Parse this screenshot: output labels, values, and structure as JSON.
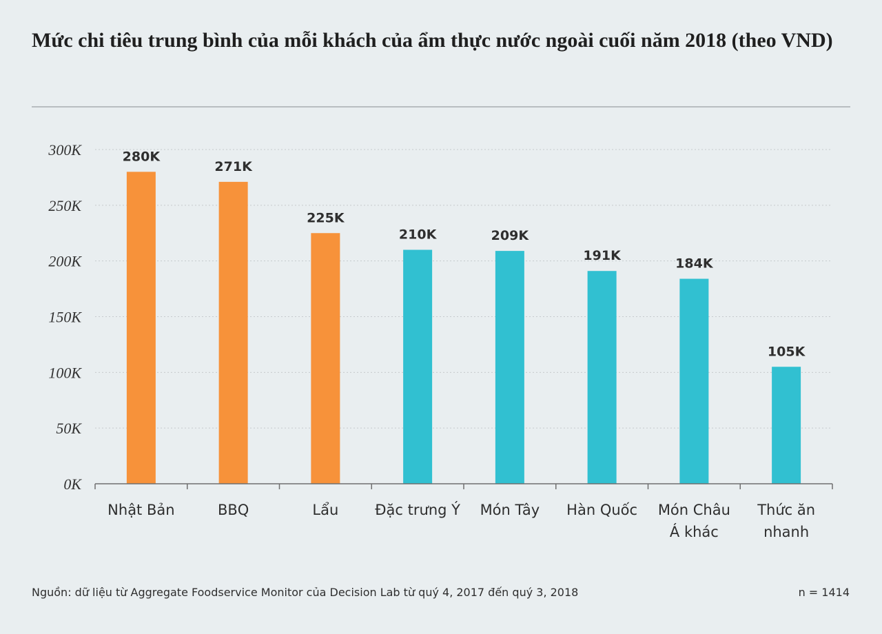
{
  "chart_data": {
    "type": "bar",
    "title": "Mức chi tiêu trung bình của mỗi khách của ẩm thực nước ngoài cuối năm 2018 (theo VND)",
    "xlabel": "",
    "ylabel": "",
    "categories": [
      "Nhật Bản",
      "BBQ",
      "Lẩu",
      "Đặc trưng Ý",
      "Món Tây",
      "Hàn Quốc",
      "Món Châu Á khác",
      "Thức ăn nhanh"
    ],
    "values": [
      280000,
      271000,
      225000,
      210000,
      209000,
      191000,
      184000,
      105000
    ],
    "value_labels": [
      "280K",
      "271K",
      "225K",
      "210K",
      "209K",
      "191K",
      "184K",
      "105K"
    ],
    "bar_colors": [
      "#f7923a",
      "#f7923a",
      "#f7923a",
      "#31c0d1",
      "#31c0d1",
      "#31c0d1",
      "#31c0d1",
      "#31c0d1"
    ],
    "yticks": [
      0,
      50000,
      100000,
      150000,
      200000,
      250000,
      300000
    ],
    "ytick_labels": [
      "0K",
      "50K",
      "100K",
      "150K",
      "200K",
      "250K",
      "300K"
    ],
    "ylim": [
      0,
      300000
    ],
    "grid": true,
    "legend": "none"
  },
  "footer": {
    "source": "Nguồn: dữ liệu từ Aggregate Foodservice Monitor của Decision Lab từ quý 4, 2017 đến quý 3, 2018",
    "sample": "n = 1414"
  },
  "colors": {
    "background": "#e9eef0",
    "highlight": "#f7923a",
    "other": "#31c0d1",
    "grid": "#c5c9cc"
  }
}
